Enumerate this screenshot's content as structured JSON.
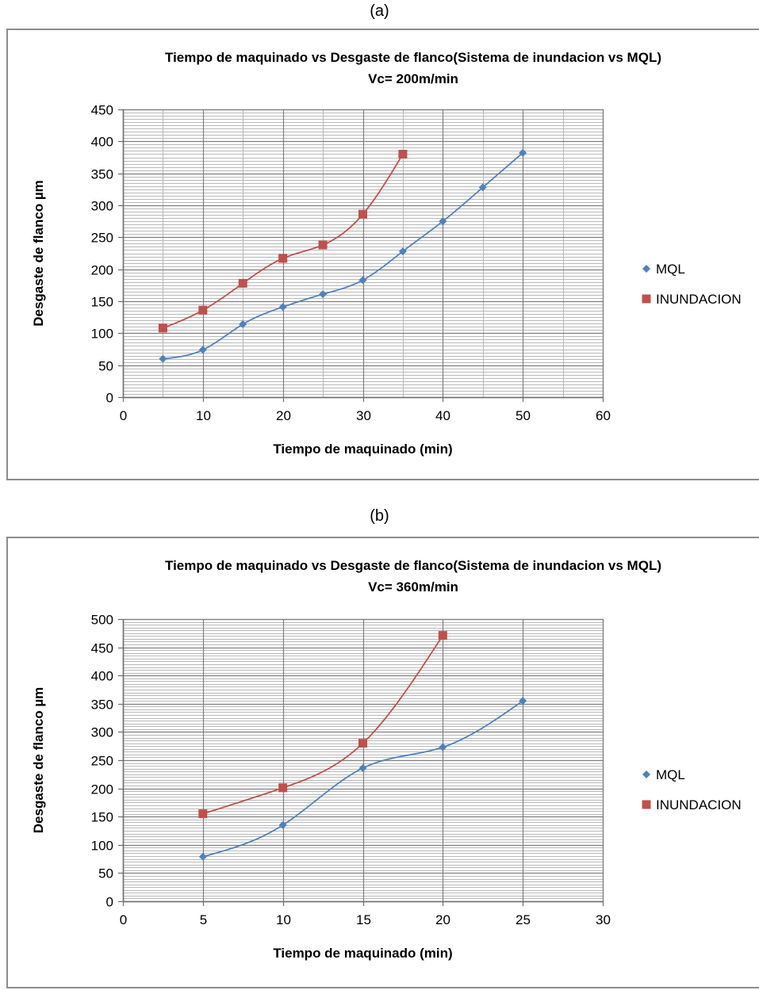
{
  "panels": [
    {
      "label": "(a)",
      "chart_data": {
        "type": "line",
        "title": "Tiempo de maquinado vs Desgaste de flanco(Sistema de inundacion vs MQL)",
        "subtitle": "Vc= 200m/min",
        "xlabel": "Tiempo de maquinado (min)",
        "ylabel": "Desgaste de flanco µm",
        "xlim": [
          0,
          60
        ],
        "ylim": [
          0,
          450
        ],
        "xticks": [
          0,
          10,
          20,
          30,
          40,
          50,
          60
        ],
        "yticks": [
          0,
          50,
          100,
          150,
          200,
          250,
          300,
          350,
          400,
          450
        ],
        "x_minor": 2,
        "y_minor": 10,
        "grid": true,
        "legend_position": "right",
        "series": [
          {
            "name": "MQL",
            "color": "#4f81bd",
            "marker": "diamond",
            "x": [
              5,
              10,
              15,
              20,
              25,
              30,
              35,
              40,
              45,
              50
            ],
            "y": [
              60,
              74,
              114,
              141,
              161,
              183,
              228,
              275,
              328,
              382
            ]
          },
          {
            "name": "INUNDACION",
            "color": "#c0504d",
            "marker": "square",
            "x": [
              5,
              10,
              15,
              20,
              25,
              30,
              35
            ],
            "y": [
              108,
              136,
              178,
              217,
              238,
              286,
              380
            ]
          }
        ]
      }
    },
    {
      "label": "(b)",
      "chart_data": {
        "type": "line",
        "title": "Tiempo de maquinado vs Desgaste de flanco(Sistema de inundacion vs MQL)",
        "subtitle": "Vc= 360m/min",
        "xlabel": "Tiempo de maquinado (min)",
        "ylabel": "Desgaste de flanco µm",
        "xlim": [
          0,
          30
        ],
        "ylim": [
          0,
          500
        ],
        "xticks": [
          0,
          5,
          10,
          15,
          20,
          25,
          30
        ],
        "yticks": [
          0,
          50,
          100,
          150,
          200,
          250,
          300,
          350,
          400,
          450,
          500
        ],
        "x_minor": 1,
        "y_minor": 10,
        "grid": true,
        "legend_position": "right",
        "series": [
          {
            "name": "MQL",
            "color": "#4f81bd",
            "marker": "diamond",
            "x": [
              5,
              10,
              15,
              20,
              25
            ],
            "y": [
              79,
              135,
              236,
              273,
              355
            ]
          },
          {
            "name": "INUNDACION",
            "color": "#c0504d",
            "marker": "square",
            "x": [
              5,
              10,
              15,
              20
            ],
            "y": [
              155,
              201,
              280,
              471
            ]
          }
        ]
      }
    }
  ]
}
